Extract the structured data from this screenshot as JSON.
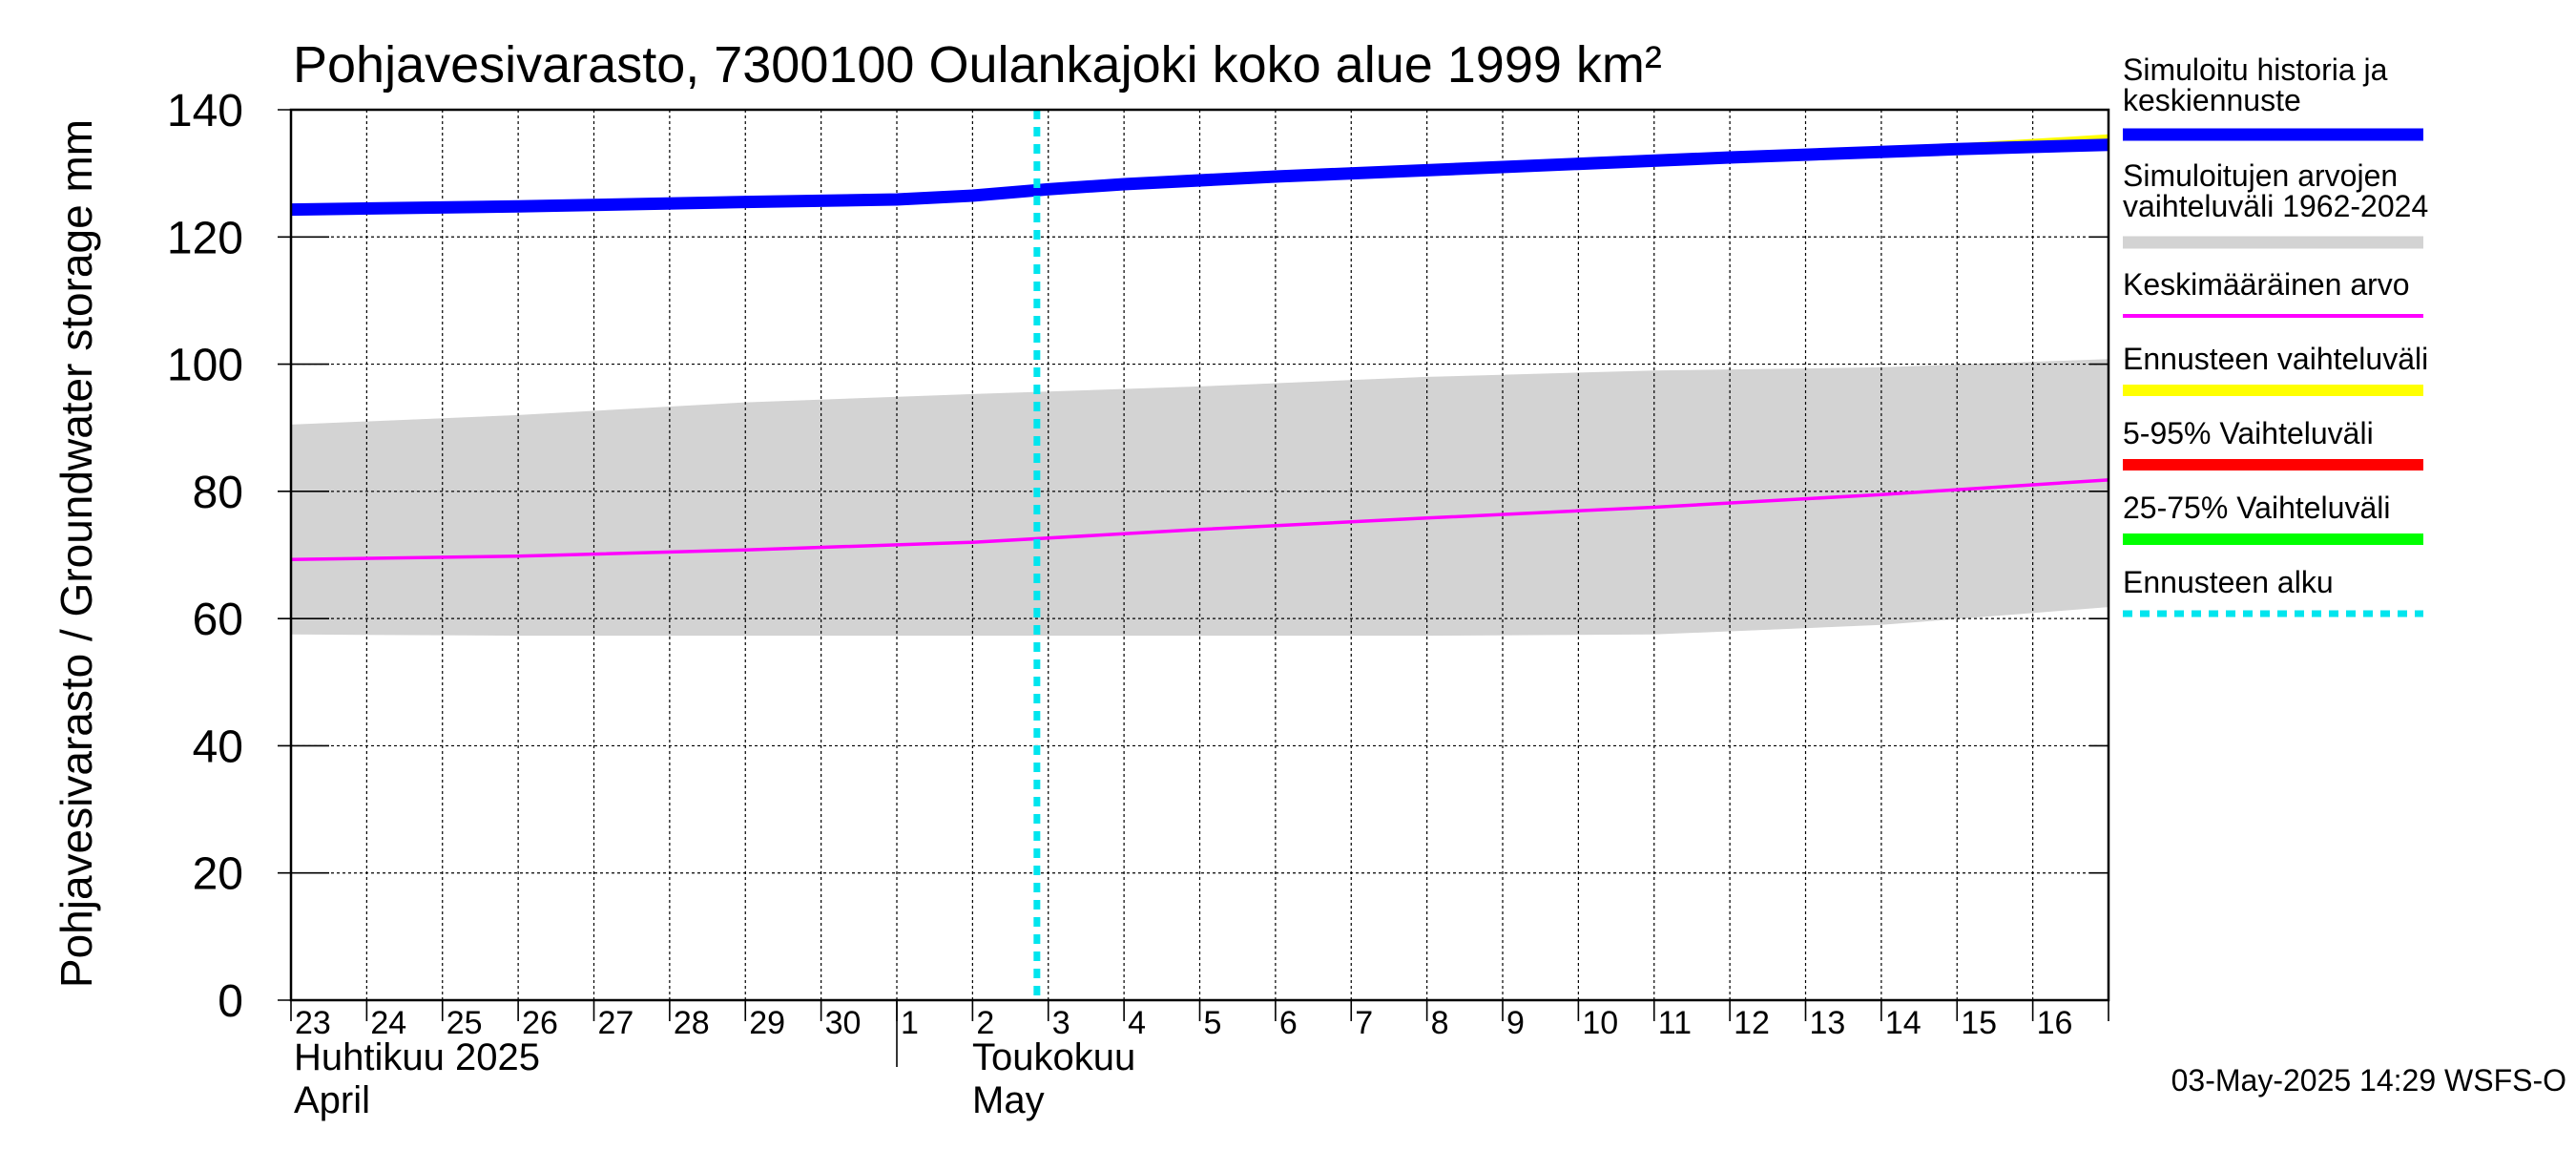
{
  "chart_data": {
    "type": "line",
    "title": "Pohjavesivarasto, 7300100 Oulankajoki koko alue 1999 km²",
    "ylabel": "Pohjavesivarasto / Groundwater storage   mm",
    "ylim": [
      0,
      140
    ],
    "yticks": [
      "0",
      "20",
      "40",
      "60",
      "80",
      "100",
      "120",
      "140"
    ],
    "grid": true,
    "x_days": [
      "23",
      "24",
      "25",
      "26",
      "27",
      "28",
      "29",
      "30",
      "1",
      "2",
      "3",
      "4",
      "5",
      "6",
      "7",
      "8",
      "9",
      "10",
      "11",
      "12",
      "13",
      "14",
      "15",
      "16"
    ],
    "month_labels": {
      "april_fi": "Huhtikuu  2025",
      "april_en": "April",
      "may_fi": "Toukokuu",
      "may_en": "May"
    },
    "forecast_start": "2025-05-03",
    "range_band": {
      "name": "Simuloitujen arvojen vaihteluväli 1962-2024",
      "color": "#d3d3d3",
      "dates": [
        "2025-04-23",
        "2025-04-26",
        "2025-04-29",
        "2025-05-02",
        "2025-05-05",
        "2025-05-08",
        "2025-05-11",
        "2025-05-14",
        "2025-05-17"
      ],
      "upper": [
        90.5,
        92.0,
        94.0,
        95.3,
        96.5,
        98.0,
        99.0,
        99.5,
        100.8
      ],
      "lower": [
        57.5,
        57.3,
        57.3,
        57.3,
        57.3,
        57.3,
        57.5,
        59.0,
        61.8
      ]
    },
    "series": [
      {
        "name": "Keskimääräinen arvo",
        "color": "#ff00ff",
        "dates": [
          "2025-04-23",
          "2025-04-26",
          "2025-04-29",
          "2025-05-02",
          "2025-05-05",
          "2025-05-08",
          "2025-05-11",
          "2025-05-14",
          "2025-05-17"
        ],
        "values": [
          69.3,
          69.8,
          70.8,
          72.0,
          74.0,
          75.8,
          77.5,
          79.5,
          81.8
        ]
      },
      {
        "name": "Ennusteen vaihteluväli",
        "color": "#ffff00",
        "dates": [
          "2025-05-03",
          "2025-05-06",
          "2025-05-09",
          "2025-05-12",
          "2025-05-15",
          "2025-05-17"
        ],
        "values": [
          127.5,
          129.6,
          131.0,
          132.6,
          134.2,
          135.6
        ]
      },
      {
        "name": "Simuloitu historia ja keskiennuste",
        "color": "#0000ff",
        "dates": [
          "2025-04-23",
          "2025-04-26",
          "2025-04-29",
          "2025-05-01",
          "2025-05-02",
          "2025-05-03",
          "2025-05-04",
          "2025-05-06",
          "2025-05-09",
          "2025-05-12",
          "2025-05-15",
          "2025-05-17"
        ],
        "values": [
          124.3,
          124.8,
          125.5,
          125.9,
          126.5,
          127.5,
          128.3,
          129.5,
          131.0,
          132.5,
          133.8,
          134.5
        ]
      }
    ],
    "legend": {
      "placement": "right",
      "items": [
        {
          "label": "Simuloitu historia ja keskiennuste",
          "color": "#0000ff",
          "style": "thick"
        },
        {
          "label": "Simuloitujen arvojen vaihteluväli 1962-2024",
          "color": "#d3d3d3",
          "style": "band"
        },
        {
          "label": "Keskimääräinen arvo",
          "color": "#ff00ff",
          "style": "thin"
        },
        {
          "label": "Ennusteen vaihteluväli",
          "color": "#ffff00",
          "style": "medium"
        },
        {
          "label": "5-95% Vaihteluväli",
          "color": "#ff0000",
          "style": "medium"
        },
        {
          "label": "25-75% Vaihteluväli",
          "color": "#00ff00",
          "style": "medium"
        },
        {
          "label": "Ennusteen alku",
          "color": "#00e5ee",
          "style": "dotted"
        }
      ]
    },
    "timestamp": "03-May-2025 14:29 WSFS-O"
  }
}
